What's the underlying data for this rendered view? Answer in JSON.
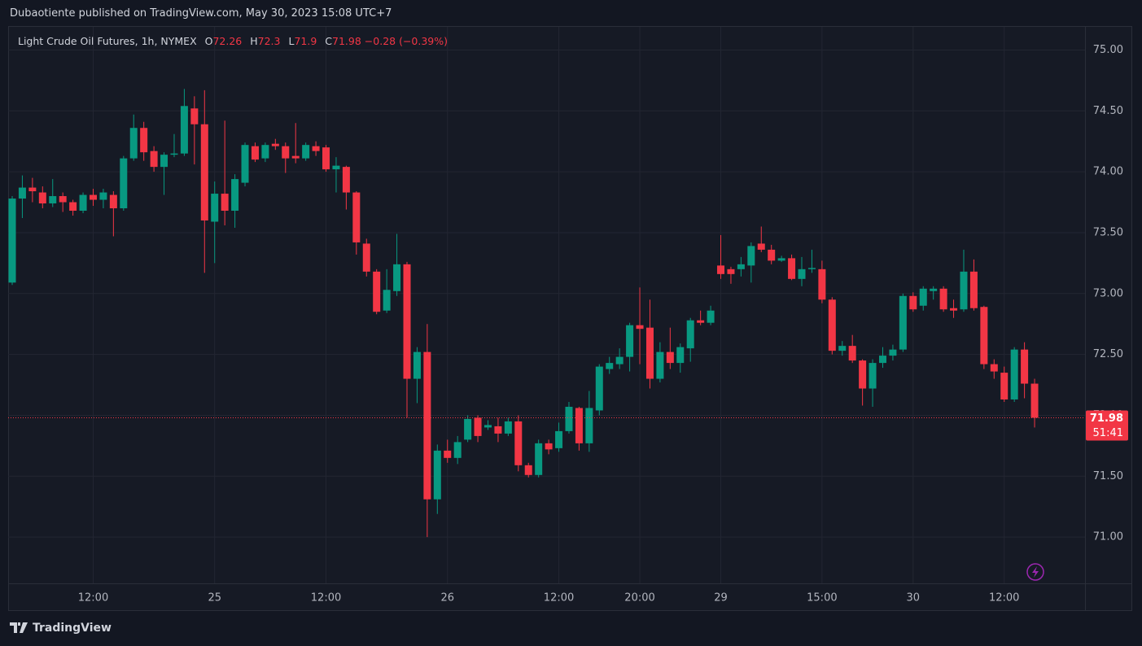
{
  "header": {
    "attribution": "Dubaotiente published on TradingView.com, May 30, 2023 15:08 UTC+7"
  },
  "chart_data": {
    "type": "candlestick",
    "legend": {
      "symbol": "Light Crude Oil Futures, 1h, NYMEX",
      "open_label": "O",
      "open": 72.26,
      "high_label": "H",
      "high": 72.3,
      "low_label": "L",
      "low": 71.9,
      "close_label": "C",
      "close": 71.98,
      "change": "−0.28 (−0.39%)"
    },
    "categories": [
      null,
      null,
      null,
      null,
      null,
      null,
      null,
      null,
      "12:00",
      null,
      null,
      null,
      null,
      null,
      null,
      null,
      null,
      null,
      null,
      null,
      "25",
      null,
      null,
      null,
      null,
      null,
      null,
      null,
      null,
      null,
      null,
      "12:00",
      null,
      null,
      null,
      null,
      null,
      null,
      null,
      null,
      null,
      null,
      null,
      "26",
      null,
      null,
      null,
      null,
      null,
      null,
      null,
      null,
      null,
      null,
      "12:00",
      null,
      null,
      null,
      null,
      null,
      null,
      null,
      "20:00",
      null,
      null,
      null,
      null,
      null,
      null,
      null,
      "29",
      null,
      null,
      null,
      null,
      null,
      null,
      null,
      null,
      null,
      "15:00",
      null,
      null,
      null,
      null,
      null,
      null,
      null,
      null,
      "30",
      null,
      null,
      null,
      null,
      null,
      null,
      null,
      null,
      "12:00",
      null,
      null,
      null
    ],
    "open": [
      73.09,
      73.78,
      73.87,
      73.83,
      73.74,
      73.8,
      73.75,
      73.68,
      73.81,
      73.77,
      73.81,
      73.7,
      74.11,
      74.36,
      74.17,
      74.04,
      74.14,
      74.15,
      74.52,
      74.39,
      73.59,
      73.82,
      73.68,
      73.91,
      74.21,
      74.11,
      74.23,
      74.21,
      74.13,
      74.11,
      74.21,
      74.2,
      74.02,
      74.04,
      73.83,
      73.41,
      73.18,
      72.86,
      73.02,
      73.24,
      72.3,
      72.52,
      71.31,
      71.71,
      71.65,
      71.8,
      71.98,
      71.9,
      71.91,
      71.85,
      71.95,
      71.59,
      71.51,
      71.77,
      71.73,
      71.87,
      72.06,
      71.77,
      72.04,
      72.38,
      72.42,
      72.48,
      72.74,
      72.72,
      72.3,
      72.52,
      72.43,
      72.55,
      72.78,
      72.76,
      73.23,
      73.2,
      73.2,
      73.23,
      73.41,
      73.36,
      73.27,
      73.29,
      73.12,
      73.2,
      73.2,
      72.95,
      72.53,
      72.57,
      72.45,
      72.22,
      72.43,
      72.49,
      72.54,
      72.98,
      72.9,
      73.02,
      73.04,
      72.88,
      72.87,
      73.18,
      72.89,
      72.42,
      72.35,
      72.13,
      72.54,
      72.26
    ],
    "high": [
      73.8,
      73.97,
      73.95,
      73.88,
      73.94,
      73.83,
      73.77,
      73.83,
      73.86,
      73.86,
      73.84,
      74.13,
      74.47,
      74.41,
      74.21,
      74.16,
      74.31,
      74.68,
      74.62,
      74.67,
      73.92,
      74.42,
      73.98,
      74.24,
      74.24,
      74.24,
      74.27,
      74.24,
      74.4,
      74.24,
      74.25,
      74.22,
      74.12,
      74.05,
      73.84,
      73.45,
      73.2,
      73.2,
      73.49,
      73.26,
      72.56,
      72.75,
      71.76,
      71.8,
      71.83,
      72.0,
      72.0,
      71.96,
      71.98,
      71.98,
      72.0,
      71.61,
      71.8,
      71.8,
      71.94,
      72.11,
      72.07,
      72.2,
      72.42,
      72.48,
      72.55,
      72.76,
      73.05,
      72.95,
      72.6,
      72.72,
      72.59,
      72.8,
      72.86,
      72.9,
      73.48,
      73.22,
      73.3,
      73.42,
      73.55,
      73.4,
      73.31,
      73.32,
      73.3,
      73.36,
      73.27,
      72.97,
      72.61,
      72.66,
      72.46,
      72.46,
      72.56,
      72.58,
      73.0,
      73.01,
      73.06,
      73.06,
      73.06,
      72.95,
      73.36,
      73.28,
      72.9,
      72.46,
      72.4,
      72.56,
      72.6,
      72.3
    ],
    "low": [
      73.07,
      73.62,
      73.75,
      73.7,
      73.71,
      73.67,
      73.64,
      73.66,
      73.72,
      73.7,
      73.47,
      73.68,
      74.09,
      74.09,
      74.0,
      73.81,
      74.12,
      74.13,
      74.06,
      73.17,
      73.25,
      73.56,
      73.54,
      73.88,
      74.08,
      74.08,
      74.18,
      73.99,
      74.07,
      74.09,
      74.13,
      74.0,
      73.83,
      73.69,
      73.32,
      73.14,
      72.83,
      72.84,
      72.98,
      71.98,
      72.1,
      71.0,
      71.19,
      71.61,
      71.6,
      71.78,
      71.78,
      71.88,
      71.78,
      71.83,
      71.54,
      71.49,
      71.49,
      71.68,
      71.7,
      71.85,
      71.71,
      71.7,
      72.0,
      72.34,
      72.38,
      72.36,
      72.42,
      72.22,
      72.27,
      72.38,
      72.35,
      72.44,
      72.74,
      72.74,
      73.12,
      73.08,
      73.14,
      73.09,
      73.34,
      73.24,
      73.26,
      73.11,
      73.06,
      73.17,
      72.92,
      72.5,
      72.49,
      72.43,
      72.08,
      72.07,
      72.39,
      72.45,
      72.52,
      72.85,
      72.86,
      72.95,
      72.85,
      72.8,
      72.85,
      72.86,
      72.38,
      72.3,
      72.11,
      72.11,
      72.14,
      71.9
    ],
    "close": [
      73.78,
      73.87,
      73.84,
      73.74,
      73.8,
      73.75,
      73.68,
      73.81,
      73.77,
      73.83,
      73.7,
      74.11,
      74.36,
      74.16,
      74.04,
      74.14,
      74.15,
      74.54,
      74.39,
      73.6,
      73.82,
      73.68,
      73.94,
      74.22,
      74.1,
      74.22,
      74.21,
      74.11,
      74.11,
      74.22,
      74.17,
      74.02,
      74.05,
      73.83,
      73.42,
      73.18,
      72.85,
      73.03,
      73.24,
      72.3,
      72.52,
      71.31,
      71.71,
      71.65,
      71.78,
      71.97,
      71.83,
      71.92,
      71.85,
      71.95,
      71.59,
      71.51,
      71.77,
      71.72,
      71.87,
      72.07,
      71.77,
      72.06,
      72.4,
      72.43,
      72.48,
      72.74,
      72.71,
      72.3,
      72.52,
      72.43,
      72.56,
      72.78,
      72.76,
      72.86,
      73.16,
      73.16,
      73.24,
      73.39,
      73.36,
      73.27,
      73.29,
      73.12,
      73.2,
      73.21,
      72.95,
      72.53,
      72.57,
      72.45,
      72.22,
      72.43,
      72.49,
      72.54,
      72.98,
      72.87,
      73.04,
      73.04,
      72.87,
      72.86,
      73.18,
      72.88,
      72.42,
      72.36,
      72.13,
      72.54,
      72.26,
      71.98
    ],
    "up_color": "#089981",
    "down_color": "#f23645",
    "ylim": [
      70.62,
      75.19
    ],
    "yticks": [
      {
        "value": 71,
        "label": "71.00"
      },
      {
        "value": 71.5,
        "label": "71.50"
      },
      {
        "value": 72,
        "label": "72.00"
      },
      {
        "value": 72.5,
        "label": "72.50"
      },
      {
        "value": 73,
        "label": "73.00"
      },
      {
        "value": 73.5,
        "label": "73.50"
      },
      {
        "value": 74,
        "label": "74.00"
      },
      {
        "value": 74.5,
        "label": "74.50"
      },
      {
        "value": 75,
        "label": "75.00"
      }
    ],
    "grid": true,
    "last_price": 71.98,
    "last_price_countdown": "51:41"
  },
  "footer": {
    "brand": "TradingView"
  }
}
